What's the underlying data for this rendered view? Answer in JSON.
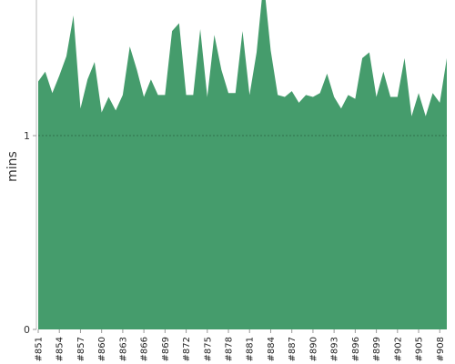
{
  "chart_data": {
    "type": "area",
    "title": "",
    "xlabel": "",
    "ylabel": "mins",
    "ylim": [
      0,
      1.7
    ],
    "yticks": [
      0,
      1
    ],
    "threshold": 1,
    "threshold_style": "dashed",
    "grid": false,
    "legend": "none",
    "fill_color": "#459c6c",
    "threshold_color": "#2f6f4a",
    "x_tick_labels": [
      "#851",
      "#854",
      "#857",
      "#860",
      "#863",
      "#866",
      "#869",
      "#872",
      "#875",
      "#878",
      "#881",
      "#884",
      "#887",
      "#890",
      "#893",
      "#896",
      "#899",
      "#902",
      "#905",
      "#908"
    ],
    "series": [
      {
        "x": [
          "#851",
          "#852",
          "#853",
          "#854",
          "#855",
          "#856",
          "#857",
          "#858",
          "#859",
          "#860",
          "#861",
          "#862",
          "#863",
          "#864",
          "#865",
          "#866",
          "#867",
          "#868",
          "#869",
          "#870",
          "#871",
          "#872",
          "#873",
          "#874",
          "#875",
          "#876",
          "#877",
          "#878",
          "#879",
          "#880",
          "#881",
          "#882",
          "#883",
          "#884",
          "#885",
          "#886",
          "#887",
          "#888",
          "#889",
          "#890",
          "#891",
          "#892",
          "#893",
          "#894",
          "#895",
          "#896",
          "#897",
          "#898",
          "#899",
          "#900",
          "#901",
          "#902",
          "#903",
          "#904",
          "#905",
          "#906",
          "#907",
          "#908",
          "#909"
        ],
        "values": [
          1.28,
          1.33,
          1.22,
          1.31,
          1.41,
          1.62,
          1.14,
          1.29,
          1.38,
          1.12,
          1.2,
          1.13,
          1.21,
          1.46,
          1.34,
          1.2,
          1.29,
          1.21,
          1.21,
          1.54,
          1.58,
          1.21,
          1.21,
          1.55,
          1.2,
          1.52,
          1.34,
          1.22,
          1.22,
          1.54,
          1.21,
          1.43,
          1.8,
          1.44,
          1.21,
          1.2,
          1.23,
          1.17,
          1.21,
          1.2,
          1.22,
          1.32,
          1.2,
          1.14,
          1.21,
          1.19,
          1.4,
          1.43,
          1.2,
          1.33,
          1.2,
          1.2,
          1.4,
          1.1,
          1.22,
          1.1,
          1.22,
          1.17,
          1.4
        ]
      }
    ]
  }
}
